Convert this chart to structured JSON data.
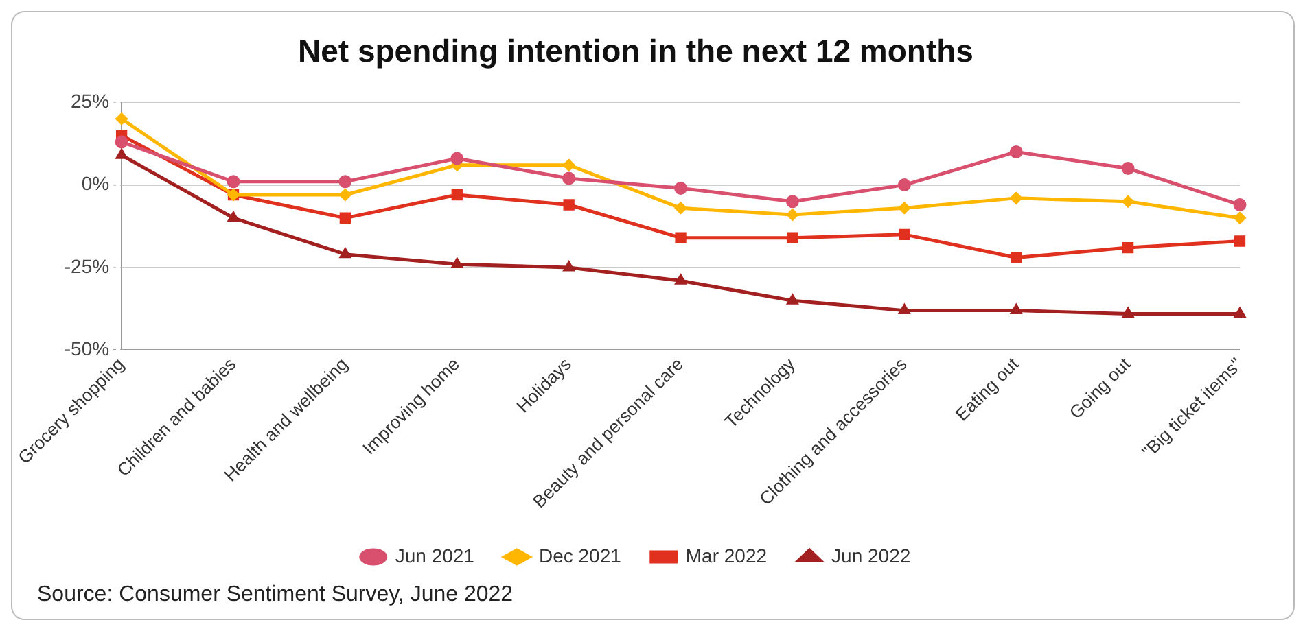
{
  "chart_data": {
    "type": "line",
    "title": "Net spending intention in the next 12 months",
    "categories": [
      "Grocery shopping",
      "Children and babies",
      "Health and wellbeing",
      "Improving home",
      "Holidays",
      "Beauty and personal care",
      "Technology",
      "Clothing and accessories",
      "Eating out",
      "Going out",
      "\"Big ticket items\""
    ],
    "series": [
      {
        "name": "Jun 2021",
        "color": "#d9506e",
        "marker": "circle",
        "values": [
          13,
          1,
          1,
          8,
          2,
          -1,
          -5,
          0,
          10,
          5,
          -6
        ]
      },
      {
        "name": "Dec 2021",
        "color": "#ffb600",
        "marker": "diamond",
        "values": [
          20,
          -3,
          -3,
          6,
          6,
          -7,
          -9,
          -7,
          -4,
          -5,
          -10
        ]
      },
      {
        "name": "Mar 2022",
        "color": "#e0301e",
        "marker": "square",
        "values": [
          15,
          -3,
          -10,
          -3,
          -6,
          -16,
          -16,
          -15,
          -22,
          -19,
          -17
        ]
      },
      {
        "name": "Jun 2022",
        "color": "#a32020",
        "marker": "triangle",
        "values": [
          9,
          -10,
          -21,
          -24,
          -25,
          -29,
          -35,
          -38,
          -38,
          -39,
          -39
        ]
      }
    ],
    "ylim": [
      -50,
      25
    ],
    "yticks": [
      {
        "value": -50,
        "label": "-50%"
      },
      {
        "value": -25,
        "label": "-25%"
      },
      {
        "value": 0,
        "label": "0%"
      },
      {
        "value": 25,
        "label": "25%"
      }
    ],
    "grid": "y",
    "legend": "bottom",
    "line_style": "solid",
    "annotations": [
      "Source: Consumer Sentiment Survey, June 2022"
    ]
  }
}
